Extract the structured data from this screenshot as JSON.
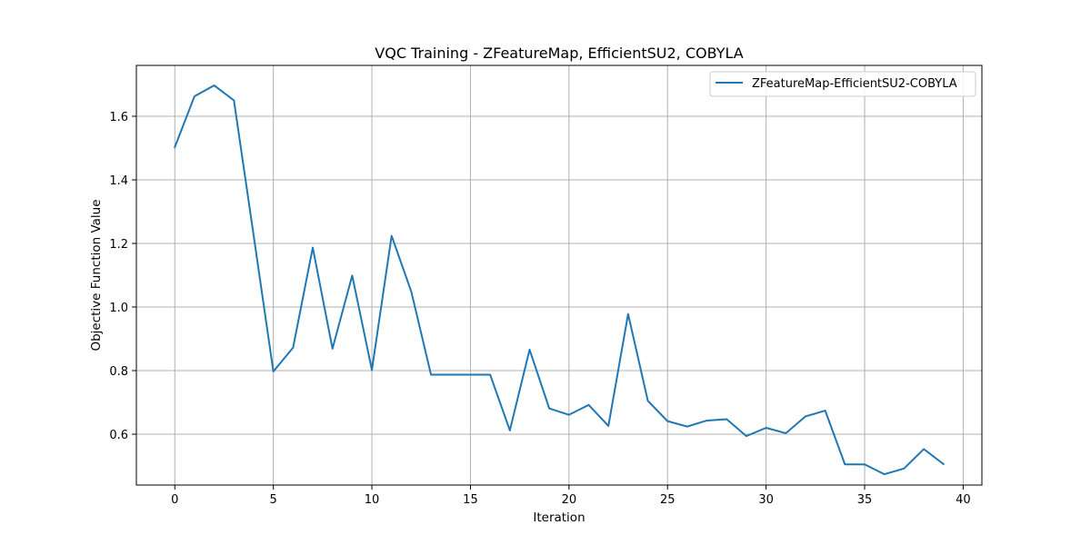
{
  "chart_data": {
    "type": "line",
    "title": "VQC Training - ZFeatureMap, EfficientSU2, COBYLA",
    "xlabel": "Iteration",
    "ylabel": "Objective Function Value",
    "xlim": [
      -1.95,
      40.95
    ],
    "ylim": [
      0.44,
      1.76
    ],
    "xticks": [
      0,
      5,
      10,
      15,
      20,
      25,
      30,
      35,
      40
    ],
    "yticks": [
      0.6,
      0.8,
      1.0,
      1.2,
      1.4,
      1.6
    ],
    "ytick_labels": [
      "0.6",
      "0.8",
      "1.0",
      "1.2",
      "1.4",
      "1.6"
    ],
    "grid": true,
    "legend_position": "top-right",
    "series": [
      {
        "name": "ZFeatureMap-EfficientSU2-COBYLA",
        "color": "#1f77b4",
        "x": [
          0,
          1,
          2,
          3,
          4,
          5,
          6,
          7,
          8,
          9,
          10,
          11,
          12,
          13,
          14,
          15,
          16,
          17,
          18,
          19,
          20,
          21,
          22,
          23,
          24,
          25,
          26,
          27,
          28,
          29,
          30,
          31,
          32,
          33,
          34,
          35,
          36,
          37,
          38,
          39
        ],
        "values": [
          1.503,
          1.663,
          1.697,
          1.65,
          1.225,
          0.797,
          0.872,
          1.187,
          0.869,
          1.099,
          0.802,
          1.224,
          1.048,
          0.787,
          0.787,
          0.787,
          0.787,
          0.612,
          0.866,
          0.681,
          0.661,
          0.692,
          0.626,
          0.978,
          0.705,
          0.641,
          0.624,
          0.643,
          0.647,
          0.594,
          0.62,
          0.603,
          0.656,
          0.674,
          0.505,
          0.505,
          0.474,
          0.492,
          0.553,
          0.506
        ]
      }
    ]
  }
}
